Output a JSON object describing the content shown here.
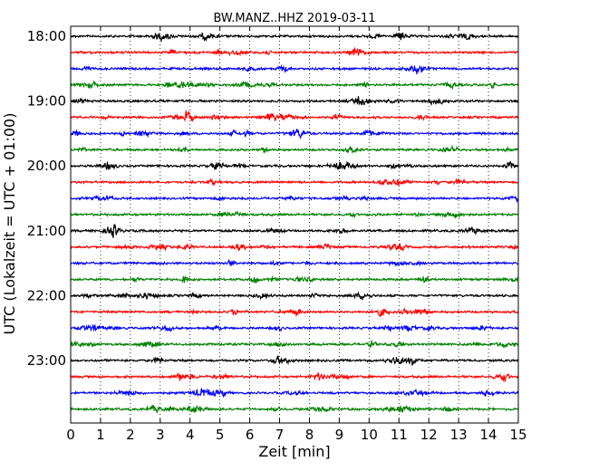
{
  "chart_data": {
    "type": "line",
    "title": "BW.MANZ..HHZ 2019-03-11",
    "xlabel": "Zeit  [min]",
    "ylabel": "UTC (Lokalzeit = UTC + 01:00)",
    "xlim": [
      0,
      15
    ],
    "x_ticks": [
      "0",
      "1",
      "2",
      "3",
      "4",
      "5",
      "6",
      "7",
      "8",
      "9",
      "10",
      "11",
      "12",
      "13",
      "14",
      "15"
    ],
    "y_tick_labels": [
      "18:00",
      "19:00",
      "20:00",
      "21:00",
      "22:00",
      "23:00"
    ],
    "grid": "vertical dotted at each minute",
    "trace_interval_min": 15,
    "trace_start": "18:00",
    "trace_count": 24,
    "trace_colors": [
      "#000000",
      "#ff0000",
      "#0000ff",
      "#008000"
    ],
    "series": [
      {
        "start": "18:00",
        "color": "#000000"
      },
      {
        "start": "18:15",
        "color": "#ff0000"
      },
      {
        "start": "18:30",
        "color": "#0000ff"
      },
      {
        "start": "18:45",
        "color": "#008000"
      },
      {
        "start": "19:00",
        "color": "#000000"
      },
      {
        "start": "19:15",
        "color": "#ff0000"
      },
      {
        "start": "19:30",
        "color": "#0000ff"
      },
      {
        "start": "19:45",
        "color": "#008000"
      },
      {
        "start": "20:00",
        "color": "#000000"
      },
      {
        "start": "20:15",
        "color": "#ff0000"
      },
      {
        "start": "20:30",
        "color": "#0000ff"
      },
      {
        "start": "20:45",
        "color": "#008000"
      },
      {
        "start": "21:00",
        "color": "#000000"
      },
      {
        "start": "21:15",
        "color": "#ff0000"
      },
      {
        "start": "21:30",
        "color": "#0000ff"
      },
      {
        "start": "21:45",
        "color": "#008000"
      },
      {
        "start": "22:00",
        "color": "#000000"
      },
      {
        "start": "22:15",
        "color": "#ff0000"
      },
      {
        "start": "22:30",
        "color": "#0000ff"
      },
      {
        "start": "22:45",
        "color": "#008000"
      },
      {
        "start": "23:00",
        "color": "#000000"
      },
      {
        "start": "23:15",
        "color": "#ff0000"
      },
      {
        "start": "23:30",
        "color": "#0000ff"
      },
      {
        "start": "23:45",
        "color": "#008000"
      }
    ]
  }
}
